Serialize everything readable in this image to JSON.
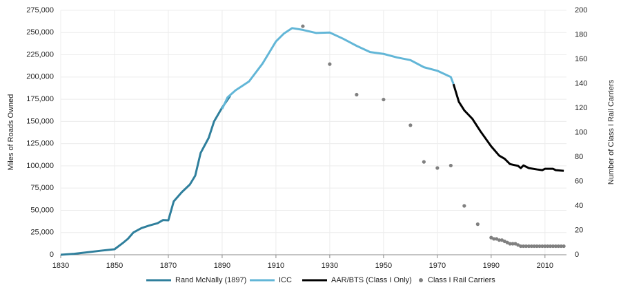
{
  "chart_data": {
    "type": "line",
    "y_label": "Miles of Roads Owned",
    "y2_label": "Number of Class I Rail Carriers",
    "xlim": [
      1830,
      2018
    ],
    "xticks": [
      1830,
      1850,
      1870,
      1890,
      1910,
      1930,
      1950,
      1970,
      1990,
      2010
    ],
    "ylim": [
      0,
      275000
    ],
    "yticks": [
      {
        "value": 0,
        "label": "0"
      },
      {
        "value": 25000,
        "label": "25,000"
      },
      {
        "value": 50000,
        "label": "50,000"
      },
      {
        "value": 75000,
        "label": "75,000"
      },
      {
        "value": 100000,
        "label": "100,000"
      },
      {
        "value": 125000,
        "label": "125,000"
      },
      {
        "value": 150000,
        "label": "150,000"
      },
      {
        "value": 175000,
        "label": "175,000"
      },
      {
        "value": 200000,
        "label": "200,000"
      },
      {
        "value": 225000,
        "label": "225,000"
      },
      {
        "value": 250000,
        "label": "250,000"
      },
      {
        "value": 275000,
        "label": "275,000"
      }
    ],
    "y2lim": [
      0,
      200
    ],
    "y2ticks": [
      0,
      20,
      40,
      60,
      80,
      100,
      120,
      140,
      160,
      180,
      200
    ],
    "grid": true,
    "legend": "bottom",
    "series": [
      {
        "name": "Rand McNally (1897)",
        "color": "#2f7f9c",
        "type": "line",
        "x": [
          1830,
          1835,
          1840,
          1845,
          1850,
          1853,
          1855,
          1857,
          1860,
          1863,
          1866,
          1868,
          1870,
          1872,
          1875,
          1878,
          1880,
          1882,
          1885,
          1887,
          1890,
          1893
        ],
        "values": [
          23,
          1100,
          2800,
          4600,
          6200,
          13000,
          18000,
          25000,
          30000,
          33000,
          35500,
          39000,
          38700,
          60000,
          70400,
          79000,
          89000,
          114500,
          131500,
          150000,
          165600,
          178800
        ]
      },
      {
        "name": "ICC",
        "color": "#62b6d7",
        "type": "line",
        "x": [
          1890,
          1892,
          1895,
          1900,
          1905,
          1908,
          1910,
          1913,
          1916,
          1920,
          1925,
          1930,
          1935,
          1940,
          1945,
          1950,
          1955,
          1960,
          1965,
          1970,
          1975,
          1976
        ],
        "values": [
          164000,
          177000,
          185000,
          195000,
          215000,
          230000,
          240000,
          249000,
          255000,
          253000,
          249500,
          250000,
          243000,
          235000,
          228000,
          226000,
          222000,
          219000,
          211000,
          207000,
          200000,
          192000
        ]
      },
      {
        "name": "AAR/BTS (Class I Only)",
        "color": "#000000",
        "type": "line",
        "x": [
          1976,
          1978,
          1980,
          1983,
          1986,
          1990,
          1993,
          1995,
          1997,
          2000,
          2001,
          2002,
          2004,
          2007,
          2009,
          2010,
          2013,
          2014,
          2017
        ],
        "values": [
          192000,
          172000,
          162500,
          153000,
          139000,
          122000,
          111500,
          108000,
          102000,
          100000,
          97500,
          100500,
          97500,
          96000,
          95200,
          96700,
          96700,
          95200,
          94400
        ]
      },
      {
        "name": "Class I Rail Carriers",
        "color": "#808080",
        "type": "scatter",
        "axis": "y2",
        "x": [
          1920,
          1930,
          1940,
          1950,
          1960,
          1965,
          1970,
          1975,
          1980,
          1985,
          1990,
          1991,
          1992,
          1993,
          1994,
          1995,
          1996,
          1997,
          1998,
          1999,
          2000,
          2001,
          2002,
          2003,
          2004,
          2005,
          2006,
          2007,
          2008,
          2009,
          2010,
          2011,
          2012,
          2013,
          2014,
          2015,
          2016,
          2017
        ],
        "values": [
          187,
          156,
          131,
          127,
          106,
          76,
          71,
          73,
          40,
          25,
          14,
          13,
          13,
          12,
          12,
          11,
          10,
          9,
          9,
          9,
          8,
          7,
          7,
          7,
          7,
          7,
          7,
          7,
          7,
          7,
          7,
          7,
          7,
          7,
          7,
          7,
          7,
          7
        ]
      }
    ]
  }
}
